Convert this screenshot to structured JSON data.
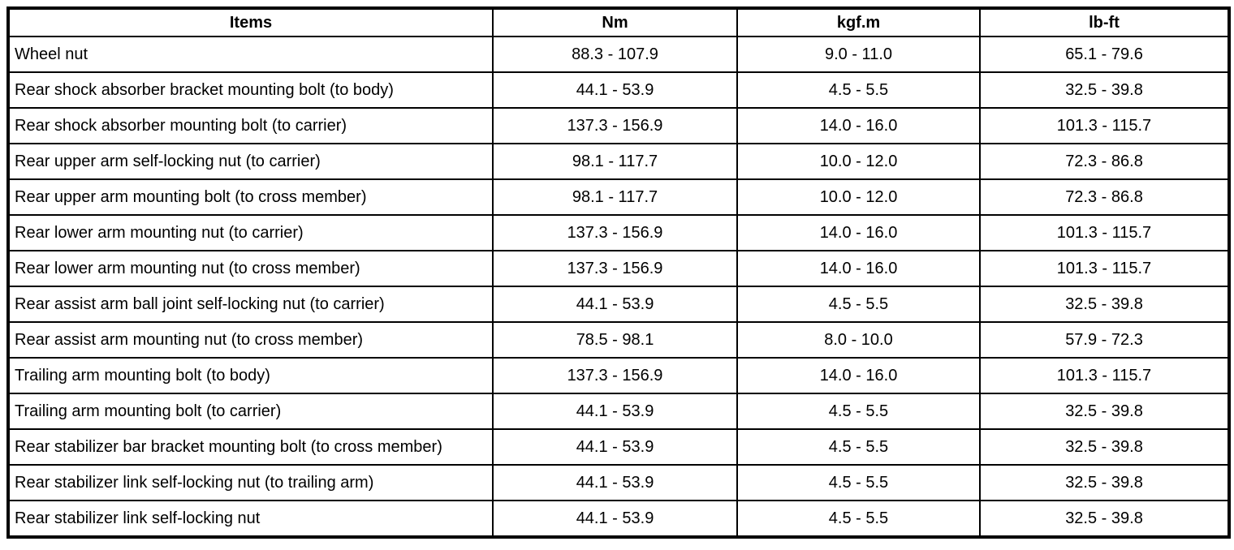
{
  "colors": {
    "border": "#000000",
    "background": "#ffffff",
    "text": "#000000"
  },
  "table": {
    "columns": [
      {
        "key": "item",
        "label": "Items"
      },
      {
        "key": "nm",
        "label": "Nm"
      },
      {
        "key": "kgfm",
        "label": "kgf.m"
      },
      {
        "key": "lbft",
        "label": "lb-ft"
      }
    ],
    "rows": [
      {
        "item": "Wheel nut",
        "nm": "88.3 - 107.9",
        "kgfm": "9.0 - 11.0",
        "lbft": "65.1 - 79.6"
      },
      {
        "item": "Rear shock absorber bracket mounting bolt (to body)",
        "nm": "44.1 - 53.9",
        "kgfm": "4.5 - 5.5",
        "lbft": "32.5 - 39.8"
      },
      {
        "item": "Rear shock absorber mounting bolt (to carrier)",
        "nm": "137.3 - 156.9",
        "kgfm": "14.0 - 16.0",
        "lbft": "101.3 - 115.7"
      },
      {
        "item": "Rear upper arm self-locking nut (to carrier)",
        "nm": "98.1 - 117.7",
        "kgfm": "10.0 - 12.0",
        "lbft": "72.3 - 86.8"
      },
      {
        "item": "Rear upper arm mounting bolt (to cross member)",
        "nm": "98.1 - 117.7",
        "kgfm": "10.0 - 12.0",
        "lbft": "72.3 - 86.8"
      },
      {
        "item": "Rear lower arm mounting nut (to carrier)",
        "nm": "137.3 - 156.9",
        "kgfm": "14.0 - 16.0",
        "lbft": "101.3 - 115.7"
      },
      {
        "item": "Rear lower arm mounting nut (to cross member)",
        "nm": "137.3 - 156.9",
        "kgfm": "14.0 - 16.0",
        "lbft": "101.3 - 115.7"
      },
      {
        "item": "Rear assist arm ball joint self-locking nut (to carrier)",
        "nm": "44.1 - 53.9",
        "kgfm": "4.5 - 5.5",
        "lbft": "32.5 - 39.8"
      },
      {
        "item": "Rear assist arm mounting nut (to cross member)",
        "nm": "78.5 - 98.1",
        "kgfm": "8.0 - 10.0",
        "lbft": "57.9 - 72.3"
      },
      {
        "item": "Trailing arm mounting bolt (to body)",
        "nm": "137.3 - 156.9",
        "kgfm": "14.0 - 16.0",
        "lbft": "101.3 - 115.7"
      },
      {
        "item": "Trailing arm mounting bolt (to carrier)",
        "nm": "44.1 - 53.9",
        "kgfm": "4.5 - 5.5",
        "lbft": "32.5 - 39.8"
      },
      {
        "item": "Rear stabilizer bar bracket mounting bolt (to cross member)",
        "nm": "44.1 - 53.9",
        "kgfm": "4.5 - 5.5",
        "lbft": "32.5 - 39.8"
      },
      {
        "item": "Rear stabilizer link self-locking nut (to trailing arm)",
        "nm": "44.1 - 53.9",
        "kgfm": "4.5 - 5.5",
        "lbft": "32.5 - 39.8"
      },
      {
        "item": "Rear stabilizer link self-locking nut",
        "nm": "44.1 - 53.9",
        "kgfm": "4.5 - 5.5",
        "lbft": "32.5 - 39.8"
      }
    ]
  }
}
